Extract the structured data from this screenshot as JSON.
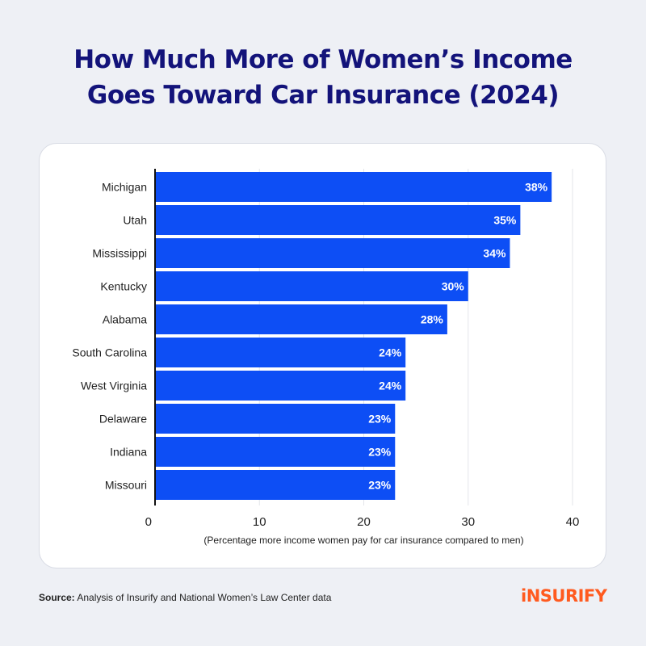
{
  "title_line1": "How Much More of Women’s Income",
  "title_line2": "Goes Toward Car Insurance (2024)",
  "source_label": "Source:",
  "source_text": "Analysis of Insurify and National Women’s Law Center data",
  "brand": "iNSURIFY",
  "colors": {
    "bar": "#0d4ef5",
    "title": "#13137a",
    "brand": "#ff5a1f"
  },
  "chart_data": {
    "type": "bar",
    "orientation": "horizontal",
    "categories": [
      "Michigan",
      "Utah",
      "Mississippi",
      "Kentucky",
      "Alabama",
      "South Carolina",
      "West Virginia",
      "Delaware",
      "Indiana",
      "Missouri"
    ],
    "values": [
      38,
      35,
      34,
      30,
      28,
      24,
      24,
      23,
      23,
      23
    ],
    "value_labels": [
      "38%",
      "35%",
      "34%",
      "30%",
      "28%",
      "24%",
      "24%",
      "23%",
      "23%",
      "23%"
    ],
    "xlabel": "(Percentage more income women pay for car insurance compared to men)",
    "xlim": [
      0,
      40
    ],
    "xticks": [
      0,
      10,
      20,
      30,
      40
    ],
    "grid": true
  }
}
